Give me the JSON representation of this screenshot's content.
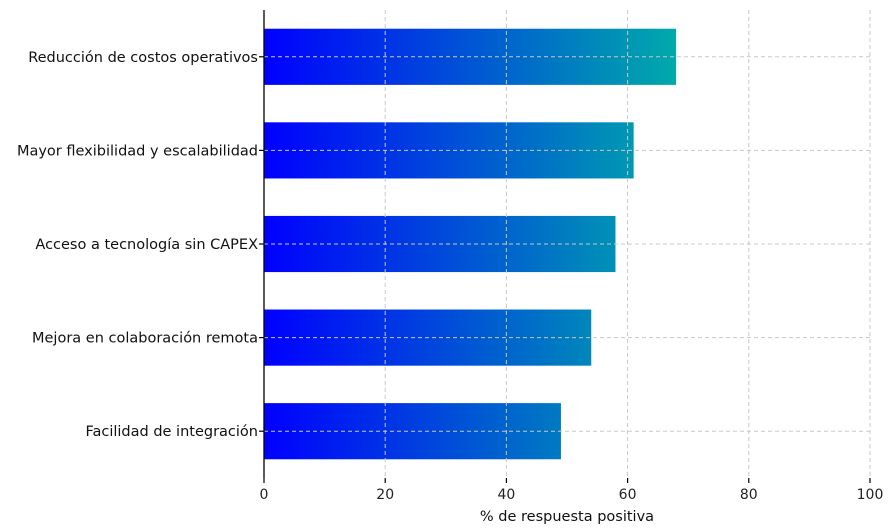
{
  "chart_data": {
    "type": "bar",
    "orientation": "horizontal",
    "categories": [
      "Reducción de costos operativos",
      "Mayor flexibilidad y escalabilidad",
      "Acceso a tecnología sin CAPEX",
      "Mejora en colaboración remota",
      "Facilidad de integración"
    ],
    "values": [
      68,
      61,
      58,
      54,
      49
    ],
    "xlabel": "% de respuesta positiva",
    "ylabel": "",
    "xlim": [
      0,
      100
    ],
    "xticks": [
      "0",
      "20",
      "40",
      "60",
      "80",
      "100"
    ],
    "grid": true,
    "bar_gradient": [
      "#0000ff",
      "#00aaaa"
    ]
  }
}
